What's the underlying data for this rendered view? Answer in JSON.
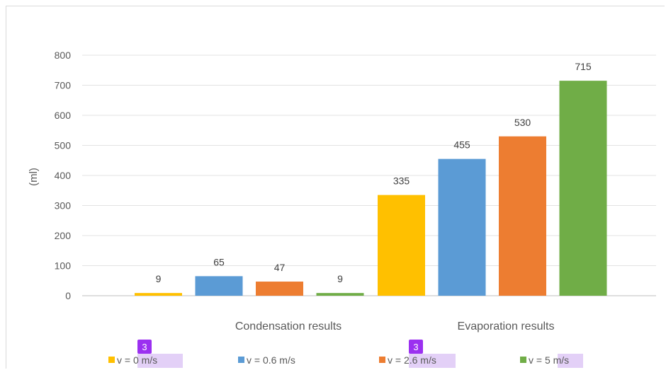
{
  "chart_data": {
    "type": "bar",
    "categories": [
      "Condensation results",
      "Evaporation results"
    ],
    "series": [
      {
        "name": "v = 0 m/s",
        "values": [
          9,
          335
        ],
        "color": "#FFC000"
      },
      {
        "name": "v = 0.6 m/s",
        "values": [
          65,
          455
        ],
        "color": "#5B9BD5"
      },
      {
        "name": "v = 2.6 m/s",
        "values": [
          47,
          530
        ],
        "color": "#ED7D31"
      },
      {
        "name": "v = 5 m/s",
        "values": [
          9,
          715
        ],
        "color": "#70AD47"
      }
    ],
    "ylabel": "(ml)",
    "ylim": [
      0,
      800
    ],
    "yticks": [
      0,
      100,
      200,
      300,
      400,
      500,
      600,
      700,
      800
    ],
    "grid": true,
    "legend": "bottom"
  },
  "annotations": {
    "badges": [
      {
        "text": "3",
        "series_index": 0
      },
      {
        "text": "3",
        "series_index": 2
      }
    ],
    "highlight_color": "#E3D0F7",
    "badge_color": "#9B30F0"
  }
}
